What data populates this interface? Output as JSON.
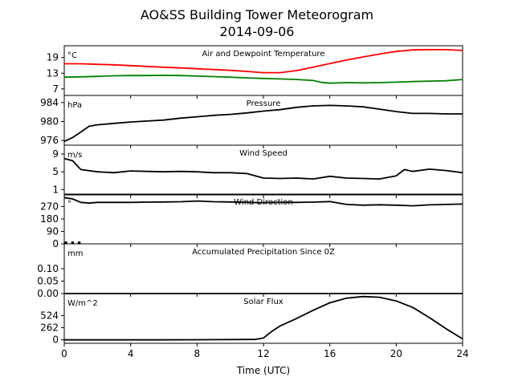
{
  "chart_data": {
    "type": "line",
    "title": "AO&SS Building Tower Meteorogram",
    "subtitle": "2014-09-06",
    "xlabel": "Time (UTC)",
    "xlim": [
      0,
      24
    ],
    "xticks": [
      "0",
      "4",
      "8",
      "12",
      "16",
      "20",
      "24"
    ],
    "panels": [
      {
        "title": "Air and Dewpoint Temperature",
        "unit": "°C",
        "ylim": [
          4.5,
          23.5
        ],
        "yticks": [
          7,
          13,
          19
        ],
        "series": [
          {
            "color": "#ff0000",
            "x": [
              0,
              1,
              2,
              3,
              4,
              5,
              6,
              7,
              8,
              9,
              10,
              11,
              12,
              13,
              14,
              15,
              16,
              17,
              18,
              19,
              20,
              21,
              22,
              23,
              24
            ],
            "y": [
              16.6,
              16.6,
              16.4,
              16.2,
              15.9,
              15.6,
              15.3,
              15.0,
              14.7,
              14.4,
              14.1,
              13.7,
              13.2,
              13.2,
              14.0,
              15.3,
              16.7,
              18.0,
              19.2,
              20.3,
              21.3,
              21.9,
              22.0,
              22.0,
              21.7
            ]
          },
          {
            "color": "#008000",
            "x": [
              0,
              1,
              2,
              3,
              4,
              5,
              6,
              7,
              8,
              9,
              10,
              11,
              12,
              13,
              14,
              15,
              15.5,
              16,
              17,
              18,
              19,
              20,
              21,
              22,
              23,
              24
            ],
            "y": [
              11.5,
              11.6,
              11.8,
              12.0,
              12.1,
              12.1,
              12.2,
              12.1,
              11.9,
              11.7,
              11.5,
              11.2,
              11.0,
              10.8,
              10.6,
              10.2,
              9.5,
              9.2,
              9.4,
              9.3,
              9.4,
              9.6,
              9.8,
              10.0,
              10.1,
              10.6
            ]
          }
        ]
      },
      {
        "title": "Pressure",
        "unit": "hPa",
        "ylim": [
          975,
          985.5
        ],
        "yticks": [
          976,
          980,
          984
        ],
        "series": [
          {
            "color": "#000000",
            "x": [
              0,
              0.5,
              1,
              1.5,
              2,
              3,
              4,
              5,
              6,
              7,
              8,
              9,
              10,
              11,
              12,
              13,
              14,
              15,
              16,
              17,
              18,
              19,
              20,
              21,
              22,
              23,
              24
            ],
            "y": [
              975.8,
              976.6,
              977.8,
              979.0,
              979.3,
              979.6,
              979.9,
              980.1,
              980.3,
              980.7,
              981.0,
              981.3,
              981.5,
              981.8,
              982.2,
              982.5,
              983.0,
              983.3,
              983.4,
              983.3,
              983.1,
              982.6,
              982.1,
              981.7,
              981.7,
              981.6,
              981.6
            ]
          }
        ]
      },
      {
        "title": "Wind Speed",
        "unit": "m/s",
        "ylim": [
          -0.2,
          11
        ],
        "yticks": [
          1,
          5,
          9
        ],
        "series": [
          {
            "color": "#000000",
            "x": [
              0,
              0.5,
              1,
              2,
              3,
              4,
              5,
              6,
              7,
              8,
              9,
              10,
              11,
              12,
              13,
              14,
              15,
              16,
              17,
              18,
              19,
              20,
              20.5,
              21,
              22,
              23,
              24
            ],
            "y": [
              8.0,
              7.5,
              5.5,
              5.0,
              4.8,
              5.2,
              5.1,
              5.0,
              5.1,
              5.0,
              4.8,
              4.8,
              4.6,
              3.6,
              3.5,
              3.6,
              3.4,
              4.0,
              3.6,
              3.5,
              3.4,
              4.1,
              5.5,
              5.1,
              5.6,
              5.3,
              4.8
            ]
          }
        ]
      },
      {
        "title": "Wind Direction",
        "unit": "°",
        "ylim": [
          0,
          360
        ],
        "yticks": [
          0,
          90,
          180,
          270
        ],
        "series": [
          {
            "color": "#000000",
            "x": [
              0,
              0.5,
              1,
              1.5,
              2,
              3,
              4,
              5,
              6,
              7,
              8,
              9,
              10,
              11,
              12,
              13,
              14,
              15,
              16,
              17,
              18,
              19,
              20,
              21,
              22,
              23,
              24
            ],
            "y": [
              335,
              325,
              300,
              295,
              300,
              300,
              300,
              302,
              303,
              305,
              310,
              305,
              303,
              300,
              298,
              300,
              300,
              302,
              306,
              285,
              280,
              283,
              280,
              275,
              282,
              285,
              288
            ]
          },
          {
            "color": "#000000",
            "x": [
              0.1,
              0.5,
              0.9
            ],
            "y": [
              8,
              8,
              8
            ]
          }
        ]
      },
      {
        "title": "Accumulated Precipitation Since 0Z",
        "unit": "mm",
        "ylim": [
          0,
          0.2
        ],
        "yticks": [
          "0.00",
          "0.05",
          "0.10"
        ],
        "series": [
          {
            "color": "#000000",
            "x": [
              0,
              24
            ],
            "y": [
              0,
              0
            ]
          }
        ]
      },
      {
        "title": "Solar Flux",
        "unit": "W/m^2",
        "ylim": [
          -75,
          1000
        ],
        "yticks": [
          0,
          262,
          524
        ],
        "series": [
          {
            "color": "#000000",
            "x": [
              0,
              6,
              11.5,
              12,
              12.5,
              13,
              14,
              15,
              16,
              17,
              18,
              19,
              20,
              21,
              22,
              23,
              24
            ],
            "y": [
              0,
              0,
              8,
              40,
              180,
              300,
              460,
              640,
              800,
              900,
              935,
              920,
              840,
              700,
              480,
              240,
              20
            ]
          }
        ]
      }
    ]
  }
}
